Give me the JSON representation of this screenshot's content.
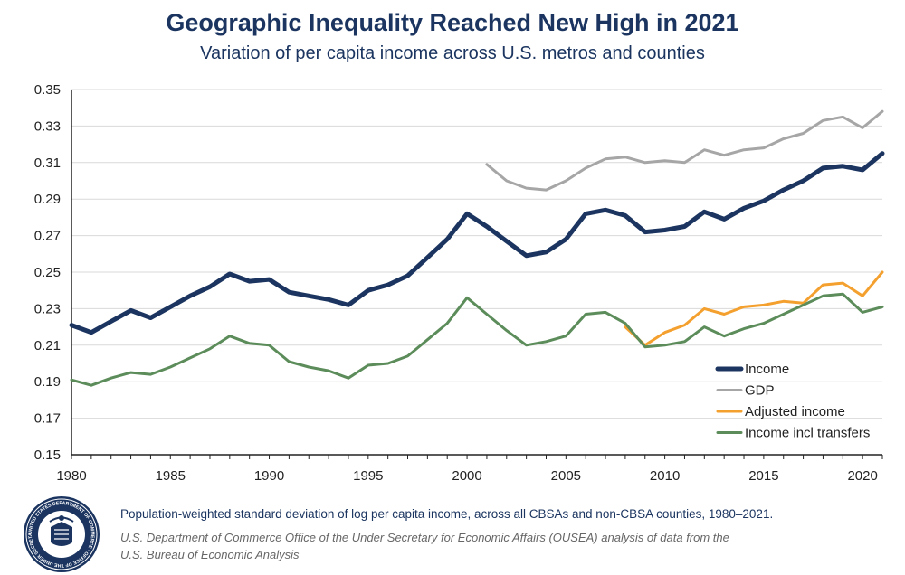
{
  "chart_data": {
    "type": "line",
    "title": "Geographic Inequality Reached New High in 2021",
    "subtitle": "Variation of per capita income across U.S. metros and counties",
    "xlabel": "",
    "ylabel": "",
    "xlim": [
      1980,
      2021
    ],
    "ylim": [
      0.15,
      0.35
    ],
    "x_ticks": [
      "1980",
      "1985",
      "1990",
      "1995",
      "2000",
      "2005",
      "2010",
      "2015",
      "2020"
    ],
    "y_ticks": [
      "0.15",
      "0.17",
      "0.19",
      "0.21",
      "0.23",
      "0.25",
      "0.27",
      "0.29",
      "0.31",
      "0.33",
      "0.35"
    ],
    "legend_position": "bottom-right",
    "series": [
      {
        "name": "Income",
        "color": "#1b3560",
        "x": [
          1980,
          1981,
          1982,
          1983,
          1984,
          1985,
          1986,
          1987,
          1988,
          1989,
          1990,
          1991,
          1992,
          1993,
          1994,
          1995,
          1996,
          1997,
          1998,
          1999,
          2000,
          2001,
          2002,
          2003,
          2004,
          2005,
          2006,
          2007,
          2008,
          2009,
          2010,
          2011,
          2012,
          2013,
          2014,
          2015,
          2016,
          2017,
          2018,
          2019,
          2020,
          2021
        ],
        "values": [
          0.221,
          0.217,
          0.223,
          0.229,
          0.225,
          0.231,
          0.237,
          0.242,
          0.249,
          0.245,
          0.246,
          0.239,
          0.237,
          0.235,
          0.232,
          0.24,
          0.243,
          0.248,
          0.258,
          0.268,
          0.282,
          0.275,
          0.267,
          0.259,
          0.261,
          0.268,
          0.282,
          0.284,
          0.281,
          0.272,
          0.273,
          0.275,
          0.283,
          0.279,
          0.285,
          0.289,
          0.295,
          0.3,
          0.307,
          0.308,
          0.306,
          0.315
        ]
      },
      {
        "name": "GDP",
        "color": "#a6a6a6",
        "x": [
          2001,
          2002,
          2003,
          2004,
          2005,
          2006,
          2007,
          2008,
          2009,
          2010,
          2011,
          2012,
          2013,
          2014,
          2015,
          2016,
          2017,
          2018,
          2019,
          2020,
          2021
        ],
        "values": [
          0.309,
          0.3,
          0.296,
          0.295,
          0.3,
          0.307,
          0.312,
          0.313,
          0.31,
          0.311,
          0.31,
          0.317,
          0.314,
          0.317,
          0.318,
          0.323,
          0.326,
          0.333,
          0.335,
          0.329,
          0.338
        ]
      },
      {
        "name": "Adjusted income",
        "color": "#f4a02f",
        "x": [
          2008,
          2009,
          2010,
          2011,
          2012,
          2013,
          2014,
          2015,
          2016,
          2017,
          2018,
          2019,
          2020,
          2021
        ],
        "values": [
          0.22,
          0.21,
          0.217,
          0.221,
          0.23,
          0.227,
          0.231,
          0.232,
          0.234,
          0.233,
          0.243,
          0.244,
          0.237,
          0.25
        ]
      },
      {
        "name": "Income incl transfers",
        "color": "#5b8c5a",
        "x": [
          1980,
          1981,
          1982,
          1983,
          1984,
          1985,
          1986,
          1987,
          1988,
          1989,
          1990,
          1991,
          1992,
          1993,
          1994,
          1995,
          1996,
          1997,
          1998,
          1999,
          2000,
          2001,
          2002,
          2003,
          2004,
          2005,
          2006,
          2007,
          2008,
          2009,
          2010,
          2011,
          2012,
          2013,
          2014,
          2015,
          2016,
          2017,
          2018,
          2019,
          2020,
          2021
        ],
        "values": [
          0.191,
          0.188,
          0.192,
          0.195,
          0.194,
          0.198,
          0.203,
          0.208,
          0.215,
          0.211,
          0.21,
          0.201,
          0.198,
          0.196,
          0.192,
          0.199,
          0.2,
          0.204,
          0.213,
          0.222,
          0.236,
          0.227,
          0.218,
          0.21,
          0.212,
          0.215,
          0.227,
          0.228,
          0.222,
          0.209,
          0.21,
          0.212,
          0.22,
          0.215,
          0.219,
          0.222,
          0.227,
          0.232,
          0.237,
          0.238,
          0.228,
          0.231
        ]
      }
    ]
  },
  "footer": {
    "note": "Population-weighted standard deviation of log per capita income, across all CBSAs and non-CBSA counties, 1980–2021.",
    "source_line1": "U.S. Department of Commerce Office of the Under Secretary for Economic Affairs (OUSEA) analysis of data from the",
    "source_line2": "U.S. Bureau of Economic Analysis"
  },
  "seal": {
    "ring_text": "UNITED STATES DEPARTMENT OF COMMERCE · OFFICE OF THE UNDER SECRETARY FOR ECONOMIC AFFAIRS ·"
  }
}
